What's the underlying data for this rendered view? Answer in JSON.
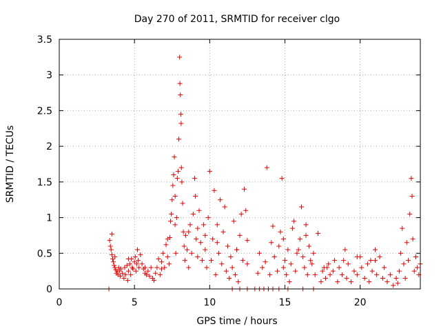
{
  "chart_data": {
    "type": "scatter",
    "title": "Day 270 of 2011, SRMTID for receiver clgo",
    "xlabel": "GPS time / hours",
    "ylabel": "SRMTID / TECUs",
    "xlim": [
      0,
      24
    ],
    "ylim": [
      0,
      3.5
    ],
    "x_ticks": [
      0,
      5,
      10,
      15,
      20
    ],
    "x_tick_labels": [
      "0",
      "5",
      "10",
      "15",
      "20"
    ],
    "y_ticks": [
      0,
      0.5,
      1,
      1.5,
      2,
      2.5,
      3,
      3.5
    ],
    "y_tick_labels": [
      "0",
      "0.5",
      "1",
      "1.5",
      "2",
      "2.5",
      "3",
      "3.5"
    ],
    "grid": true,
    "marker": "plus",
    "series": [
      {
        "name": "SRMTID",
        "color": "#e00000",
        "points": [
          [
            3.3,
            0.0
          ],
          [
            3.35,
            0.68
          ],
          [
            3.4,
            0.6
          ],
          [
            3.45,
            0.55
          ],
          [
            3.5,
            0.77
          ],
          [
            3.5,
            0.48
          ],
          [
            3.55,
            0.42
          ],
          [
            3.6,
            0.38
          ],
          [
            3.65,
            0.33
          ],
          [
            3.7,
            0.3
          ],
          [
            3.75,
            0.27
          ],
          [
            3.8,
            0.22
          ],
          [
            3.85,
            0.25
          ],
          [
            3.9,
            0.2
          ],
          [
            3.95,
            0.3
          ],
          [
            4.0,
            0.25
          ],
          [
            4.05,
            0.18
          ],
          [
            4.1,
            0.28
          ],
          [
            4.2,
            0.22
          ],
          [
            4.3,
            0.15
          ],
          [
            4.35,
            0.3
          ],
          [
            4.4,
            0.2
          ],
          [
            4.5,
            0.33
          ],
          [
            4.55,
            0.12
          ],
          [
            4.6,
            0.25
          ],
          [
            4.7,
            0.35
          ],
          [
            4.75,
            0.2
          ],
          [
            4.8,
            0.42
          ],
          [
            4.85,
            0.3
          ],
          [
            4.9,
            0.28
          ],
          [
            5.0,
            0.38
          ],
          [
            5.05,
            0.45
          ],
          [
            5.1,
            0.25
          ],
          [
            5.15,
            0.35
          ],
          [
            5.2,
            0.55
          ],
          [
            5.25,
            0.4
          ],
          [
            5.3,
            0.3
          ],
          [
            5.4,
            0.48
          ],
          [
            5.5,
            0.35
          ],
          [
            5.6,
            0.28
          ],
          [
            5.7,
            0.22
          ],
          [
            5.8,
            0.2
          ],
          [
            5.9,
            0.25
          ],
          [
            6.0,
            0.18
          ],
          [
            6.1,
            0.3
          ],
          [
            6.2,
            0.15
          ],
          [
            6.3,
            0.12
          ],
          [
            6.4,
            0.22
          ],
          [
            6.5,
            0.3
          ],
          [
            6.6,
            0.42
          ],
          [
            6.7,
            0.2
          ],
          [
            6.8,
            0.38
          ],
          [
            6.9,
            0.5
          ],
          [
            7.0,
            0.3
          ],
          [
            7.1,
            0.62
          ],
          [
            7.2,
            0.45
          ],
          [
            7.3,
            0.35
          ],
          [
            7.35,
            0.72
          ],
          [
            7.4,
            0.95
          ],
          [
            7.45,
            1.05
          ],
          [
            7.5,
            1.25
          ],
          [
            7.55,
            1.45
          ],
          [
            7.6,
            1.6
          ],
          [
            7.65,
            1.85
          ],
          [
            7.7,
            1.3
          ],
          [
            7.7,
            0.9
          ],
          [
            7.75,
            0.5
          ],
          [
            7.8,
            1.0
          ],
          [
            7.85,
            1.55
          ],
          [
            7.9,
            1.65
          ],
          [
            7.95,
            2.1
          ],
          [
            8.0,
            3.25
          ],
          [
            8.02,
            2.88
          ],
          [
            8.05,
            2.72
          ],
          [
            8.08,
            2.45
          ],
          [
            8.1,
            2.32
          ],
          [
            8.12,
            1.7
          ],
          [
            8.15,
            1.5
          ],
          [
            8.2,
            1.2
          ],
          [
            8.25,
            0.8
          ],
          [
            8.3,
            0.6
          ],
          [
            8.35,
            0.4
          ],
          [
            8.4,
            0.75
          ],
          [
            8.5,
            0.55
          ],
          [
            8.6,
            0.3
          ],
          [
            8.7,
            0.9
          ],
          [
            8.8,
            0.5
          ],
          [
            8.9,
            1.05
          ],
          [
            9.0,
            1.55
          ],
          [
            9.05,
            1.3
          ],
          [
            9.1,
            0.7
          ],
          [
            9.2,
            0.85
          ],
          [
            9.3,
            1.1
          ],
          [
            9.4,
            0.65
          ],
          [
            9.5,
            0.4
          ],
          [
            9.6,
            0.9
          ],
          [
            9.7,
            0.55
          ],
          [
            9.8,
            0.3
          ],
          [
            9.9,
            1.0
          ],
          [
            10.0,
            1.65
          ],
          [
            10.1,
            0.4
          ],
          [
            10.2,
            0.7
          ],
          [
            10.3,
            1.38
          ],
          [
            10.4,
            0.2
          ],
          [
            10.5,
            0.9
          ],
          [
            10.6,
            0.5
          ],
          [
            10.7,
            1.25
          ],
          [
            10.8,
            0.35
          ],
          [
            10.9,
            0.8
          ],
          [
            11.0,
            1.15
          ],
          [
            11.1,
            0.25
          ],
          [
            11.2,
            0.6
          ],
          [
            11.3,
            0.15
          ],
          [
            11.4,
            0.45
          ],
          [
            11.5,
            0.3
          ],
          [
            11.6,
            0.95
          ],
          [
            11.7,
            0.2
          ],
          [
            11.8,
            0.55
          ],
          [
            11.9,
            0.1
          ],
          [
            12.0,
            0.75
          ],
          [
            12.1,
            1.05
          ],
          [
            12.2,
            0.4
          ],
          [
            12.3,
            1.4
          ],
          [
            12.4,
            1.1
          ],
          [
            12.5,
            0.35
          ],
          [
            11.5,
            0.0
          ],
          [
            12.0,
            0.0
          ],
          [
            12.5,
            0.0
          ],
          [
            13.0,
            0.0
          ],
          [
            13.3,
            0.0
          ],
          [
            13.6,
            0.0
          ],
          [
            13.9,
            0.0
          ],
          [
            14.2,
            0.0
          ],
          [
            14.6,
            0.0
          ],
          [
            15.2,
            0.0
          ],
          [
            16.2,
            0.0
          ],
          [
            16.9,
            0.0
          ],
          [
            13.3,
            0.5
          ],
          [
            13.5,
            0.3
          ],
          [
            13.7,
            0.38
          ],
          [
            13.8,
            1.7
          ],
          [
            14.0,
            0.2
          ],
          [
            14.1,
            0.65
          ],
          [
            14.2,
            0.88
          ],
          [
            14.3,
            0.45
          ],
          [
            14.5,
            0.25
          ],
          [
            14.6,
            0.6
          ],
          [
            14.7,
            0.8
          ],
          [
            14.8,
            1.55
          ],
          [
            14.9,
            0.7
          ],
          [
            15.0,
            0.4
          ],
          [
            15.1,
            0.2
          ],
          [
            15.2,
            0.55
          ],
          [
            15.3,
            0.1
          ],
          [
            15.4,
            0.35
          ],
          [
            15.5,
            0.85
          ],
          [
            15.6,
            0.95
          ],
          [
            15.7,
            0.25
          ],
          [
            15.8,
            0.5
          ],
          [
            16.0,
            0.7
          ],
          [
            16.1,
            1.15
          ],
          [
            16.2,
            0.45
          ],
          [
            16.3,
            0.3
          ],
          [
            16.4,
            0.9
          ],
          [
            16.5,
            0.2
          ],
          [
            16.6,
            0.6
          ],
          [
            16.7,
            0.4
          ],
          [
            16.8,
            0.35
          ],
          [
            16.9,
            0.5
          ],
          [
            17.0,
            0.2
          ],
          [
            17.2,
            0.78
          ],
          [
            17.4,
            0.1
          ],
          [
            17.5,
            0.25
          ],
          [
            17.6,
            0.3
          ],
          [
            17.7,
            0.15
          ],
          [
            17.9,
            0.35
          ],
          [
            18.0,
            0.2
          ],
          [
            18.2,
            0.25
          ],
          [
            18.3,
            0.4
          ],
          [
            18.5,
            0.1
          ],
          [
            18.6,
            0.3
          ],
          [
            18.8,
            0.2
          ],
          [
            19.0,
            0.55
          ],
          [
            19.1,
            0.15
          ],
          [
            19.2,
            0.35
          ],
          [
            19.4,
            0.1
          ],
          [
            19.6,
            0.25
          ],
          [
            19.8,
            0.2
          ],
          [
            20.0,
            0.45
          ],
          [
            20.1,
            0.3
          ],
          [
            20.3,
            0.15
          ],
          [
            20.5,
            0.35
          ],
          [
            20.6,
            0.1
          ],
          [
            20.8,
            0.25
          ],
          [
            21.0,
            0.4
          ],
          [
            21.1,
            0.2
          ],
          [
            21.3,
            0.45
          ],
          [
            21.5,
            0.15
          ],
          [
            21.6,
            0.3
          ],
          [
            21.8,
            0.1
          ],
          [
            22.0,
            0.2
          ],
          [
            22.2,
            0.05
          ],
          [
            22.4,
            0.15
          ],
          [
            22.5,
            0.08
          ],
          [
            22.6,
            0.25
          ],
          [
            22.7,
            0.5
          ],
          [
            22.8,
            0.85
          ],
          [
            22.9,
            0.35
          ],
          [
            23.0,
            0.15
          ],
          [
            23.1,
            0.65
          ],
          [
            23.2,
            0.4
          ],
          [
            23.3,
            1.05
          ],
          [
            23.4,
            1.55
          ],
          [
            23.45,
            1.3
          ],
          [
            23.5,
            0.7
          ],
          [
            23.6,
            0.25
          ],
          [
            23.7,
            0.45
          ],
          [
            23.8,
            0.3
          ],
          [
            23.9,
            0.2
          ],
          [
            24.0,
            0.35
          ],
          [
            21.0,
            0.55
          ],
          [
            20.7,
            0.4
          ],
          [
            19.8,
            0.45
          ],
          [
            18.9,
            0.4
          ],
          [
            17.8,
            0.3
          ],
          [
            16.4,
            0.75
          ],
          [
            15.9,
            0.55
          ],
          [
            12.5,
            0.68
          ],
          [
            11.8,
            0.55
          ],
          [
            10.5,
            0.65
          ],
          [
            9.7,
            0.75
          ],
          [
            9.2,
            0.45
          ],
          [
            8.6,
            0.8
          ],
          [
            7.2,
            0.7
          ],
          [
            6.8,
            0.28
          ],
          [
            5.7,
            0.3
          ],
          [
            4.6,
            0.42
          ],
          [
            3.7,
            0.45
          ],
          [
            14.9,
            0.3
          ],
          [
            13.2,
            0.22
          ]
        ]
      }
    ]
  }
}
